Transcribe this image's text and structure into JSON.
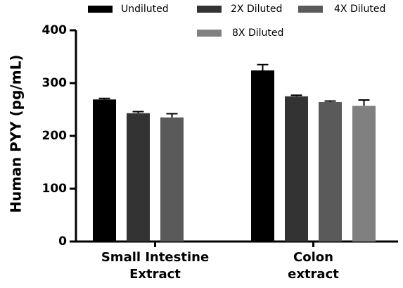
{
  "chart_data": {
    "type": "bar",
    "ylabel": "Human PYY (pg/mL)",
    "categories": [
      "Small Intestine\nExtract",
      "Colon\nextract"
    ],
    "series": [
      {
        "name": "Undiluted",
        "color": "#000000",
        "values": [
          269,
          324
        ],
        "errors": [
          2,
          11
        ]
      },
      {
        "name": "2X Diluted",
        "color": "#333333",
        "values": [
          243,
          275
        ],
        "errors": [
          3,
          2
        ]
      },
      {
        "name": "4X Diluted",
        "color": "#5a5a5a",
        "values": [
          235,
          264
        ],
        "errors": [
          7,
          2
        ]
      },
      {
        "name": "8X Diluted",
        "color": "#808080",
        "values": [
          null,
          257
        ],
        "errors": [
          null,
          11
        ]
      }
    ],
    "ylim": [
      0,
      400
    ],
    "yticks": [
      0,
      100,
      200,
      300,
      400
    ]
  }
}
